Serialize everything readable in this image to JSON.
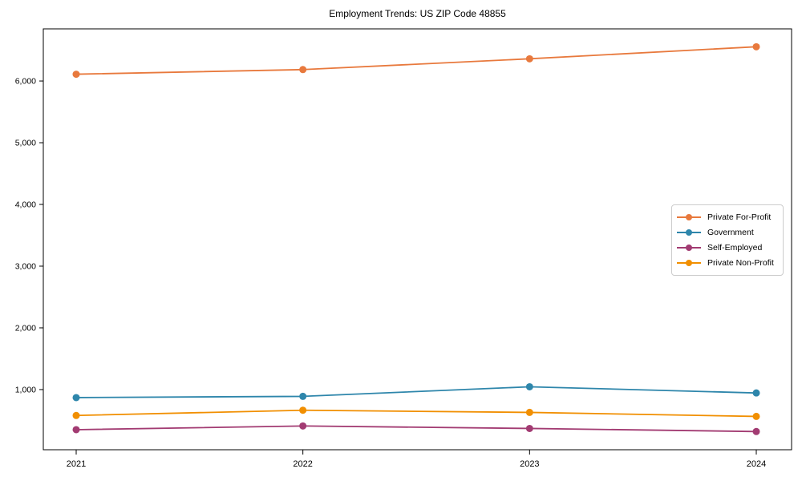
{
  "title": "Employment Trends: US ZIP Code 48855",
  "chart_data": {
    "type": "line",
    "title": "Employment Trends: US ZIP Code 48855",
    "xlabel": "",
    "ylabel": "",
    "categories": [
      "2021",
      "2022",
      "2023",
      "2024"
    ],
    "series": [
      {
        "name": "Private For-Profit",
        "color": "#E8793D",
        "values": [
          6110,
          6185,
          6360,
          6555
        ]
      },
      {
        "name": "Government",
        "color": "#2E86AB",
        "values": [
          870,
          890,
          1045,
          945
        ]
      },
      {
        "name": "Self-Employed",
        "color": "#A23B72",
        "values": [
          350,
          410,
          370,
          320
        ]
      },
      {
        "name": "Private Non-Profit",
        "color": "#F18F01",
        "values": [
          580,
          665,
          630,
          565
        ]
      }
    ],
    "ylim": [
      25,
      6845
    ],
    "yticks": [
      1000,
      2000,
      3000,
      4000,
      5000,
      6000
    ],
    "ytick_labels": [
      "1,000",
      "2,000",
      "3,000",
      "4,000",
      "5,000",
      "6,000"
    ],
    "grid": false,
    "legend_position": "center-right",
    "marker": "circle"
  }
}
